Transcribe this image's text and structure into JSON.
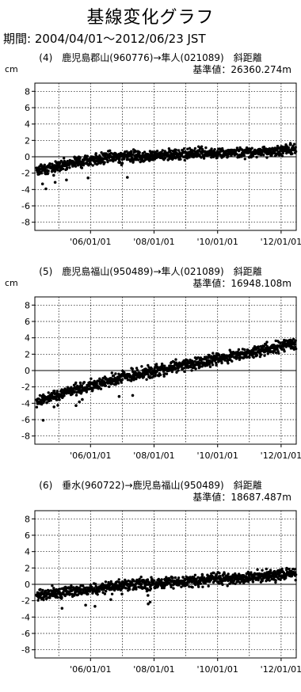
{
  "header": {
    "title": "基線変化グラフ",
    "period": "期間: 2004/04/01～2012/06/23 JST"
  },
  "chart_data": [
    {
      "type": "scatter",
      "title": "(4)　鹿児島郡山(960776)→隼人(021089)　斜距離",
      "subtitle": "基準値：26360.274m",
      "ylabel": "cm",
      "xlabel": "",
      "ylim": [
        -9,
        9
      ],
      "y_ticks": [
        8,
        6,
        4,
        2,
        0,
        -2,
        -4,
        -6,
        -8
      ],
      "x_ticks": [
        "'06/01/01",
        "'08/01/01",
        "'10/01/01",
        "'12/01/01"
      ],
      "xlim": [
        "2004-04-01",
        "2012-06-23"
      ],
      "grid": true,
      "series": [
        {
          "x": [
            "2004-05",
            "2004-10",
            "2005-04",
            "2005-10",
            "2006-04",
            "2006-10",
            "2007-04",
            "2007-10",
            "2008-04",
            "2008-10",
            "2009-04",
            "2009-10",
            "2010-04",
            "2010-10",
            "2011-04",
            "2011-10",
            "2012-04"
          ],
          "y": [
            -1.6,
            -1.3,
            -0.8,
            -0.5,
            -0.3,
            0.0,
            0.1,
            0.1,
            0.2,
            0.3,
            0.4,
            0.4,
            0.5,
            0.6,
            0.6,
            0.7,
            0.9
          ],
          "spread": 0.45
        }
      ]
    },
    {
      "type": "scatter",
      "title": "(5)　鹿児島福山(950489)→隼人(021089)　斜距離",
      "subtitle": "基準値：16948.108m",
      "ylabel": "cm",
      "xlabel": "",
      "ylim": [
        -9,
        9
      ],
      "y_ticks": [
        8,
        6,
        4,
        2,
        0,
        -2,
        -4,
        -6,
        -8
      ],
      "x_ticks": [
        "'06/01/01",
        "'08/01/01",
        "'10/01/01",
        "'12/01/01"
      ],
      "xlim": [
        "2004-04-01",
        "2012-06-23"
      ],
      "grid": true,
      "series": [
        {
          "x": [
            "2004-05",
            "2004-10",
            "2005-04",
            "2005-10",
            "2006-04",
            "2006-10",
            "2007-04",
            "2007-10",
            "2008-04",
            "2008-10",
            "2009-04",
            "2009-10",
            "2010-04",
            "2010-10",
            "2011-04",
            "2011-10",
            "2012-04"
          ],
          "y": [
            -3.7,
            -3.2,
            -2.6,
            -2.1,
            -1.6,
            -1.1,
            -0.6,
            -0.2,
            0.2,
            0.6,
            0.9,
            1.3,
            1.6,
            2.0,
            2.4,
            2.8,
            3.2
          ],
          "spread": 0.5
        }
      ]
    },
    {
      "type": "scatter",
      "title": "(6)　垂水(960722)→鹿児島福山(950489)　斜距離",
      "subtitle": "基準値：18687.487m",
      "ylabel": "",
      "xlabel": "",
      "ylim": [
        -9,
        9
      ],
      "y_ticks": [
        8,
        6,
        4,
        2,
        0,
        -2,
        -4,
        -6,
        -8
      ],
      "x_ticks": [
        "'06/01/01",
        "'08/01/01",
        "'10/01/01",
        "'12/01/01"
      ],
      "xlim": [
        "2004-04-01",
        "2012-06-23"
      ],
      "grid": true,
      "series": [
        {
          "x": [
            "2004-05",
            "2004-10",
            "2005-04",
            "2005-10",
            "2006-04",
            "2006-10",
            "2007-04",
            "2007-10",
            "2008-04",
            "2008-10",
            "2009-04",
            "2009-10",
            "2010-04",
            "2010-10",
            "2011-04",
            "2011-10",
            "2012-04"
          ],
          "y": [
            -1.3,
            -1.1,
            -0.9,
            -0.7,
            -0.5,
            -0.3,
            -0.1,
            0.0,
            0.2,
            0.3,
            0.5,
            0.6,
            0.7,
            0.8,
            0.9,
            1.1,
            1.3
          ],
          "spread": 0.5
        }
      ]
    }
  ]
}
